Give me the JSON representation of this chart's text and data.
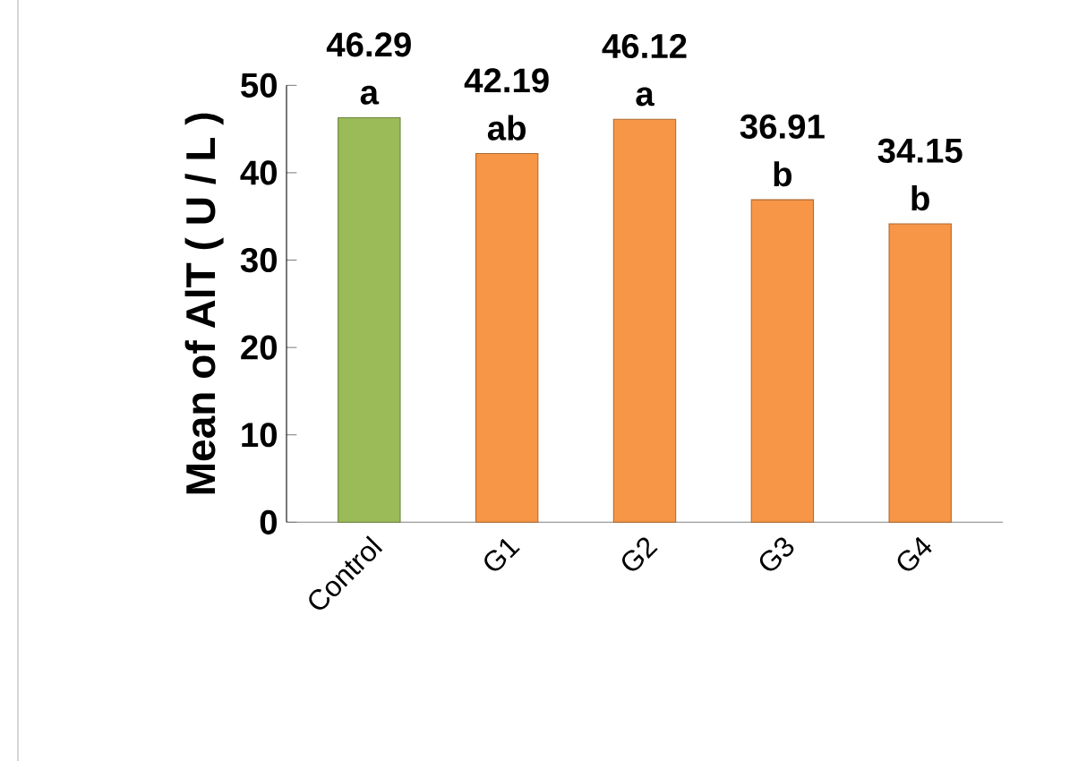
{
  "chart_data": {
    "type": "bar",
    "ylabel": "Mean of AlT ( U / L )",
    "categories": [
      "Control",
      "G1",
      "G2",
      "G3",
      "G4"
    ],
    "values": [
      46.29,
      42.19,
      46.12,
      36.91,
      34.15
    ],
    "colors": [
      "#9bbb59",
      "#f79646",
      "#f79646",
      "#f79646",
      "#f79646"
    ],
    "ylim": [
      0,
      50
    ],
    "yticks": [
      0,
      10,
      20,
      30,
      40,
      50
    ],
    "data_labels": true,
    "annotations": [
      {
        "text": "a",
        "x": "Control",
        "y": 46.29
      },
      {
        "text": "ab",
        "x": "G1",
        "y": 42.19
      },
      {
        "text": "a",
        "x": "G2",
        "y": 46.12
      },
      {
        "text": "b",
        "x": "G3",
        "y": 36.91
      },
      {
        "text": "b",
        "x": "G4",
        "y": 34.15
      }
    ]
  }
}
